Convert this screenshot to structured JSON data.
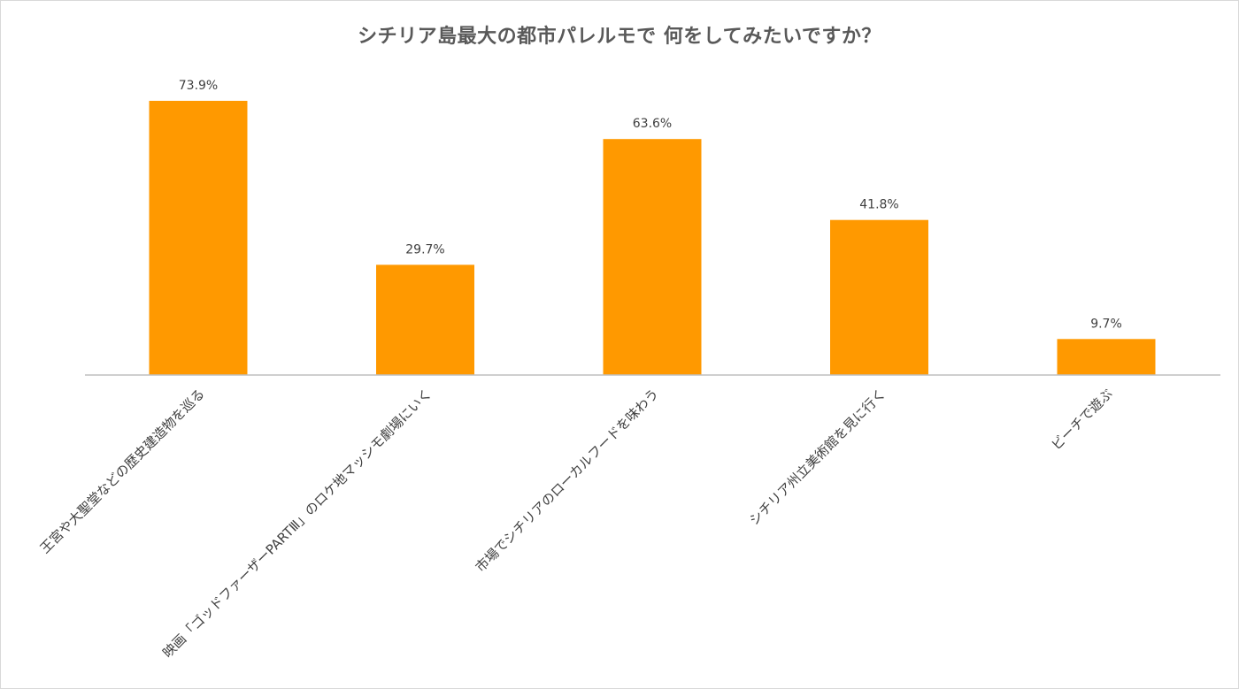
{
  "chart_data": {
    "type": "bar",
    "title": "シチリア島最大の都市パレルモで 何をしてみたいですか？",
    "categories": [
      "王宮や大聖堂などの歴史建造物を巡る",
      "映画「ゴッドファーザーPARTⅢ」のロケ地マッシモ劇場にいく",
      "市場でシチリアのローカルフードを味わう",
      "シチリア州立美術館を見に行く",
      "ビーチで遊ぶ"
    ],
    "values": [
      73.9,
      29.7,
      63.6,
      41.8,
      9.7
    ],
    "data_labels": [
      "73.9%",
      "29.7%",
      "63.6%",
      "41.8%",
      "9.7%"
    ],
    "unit": "%",
    "ylim": [
      0,
      80
    ],
    "grid": false,
    "legend": "none",
    "bar_color": "#ff9900"
  }
}
